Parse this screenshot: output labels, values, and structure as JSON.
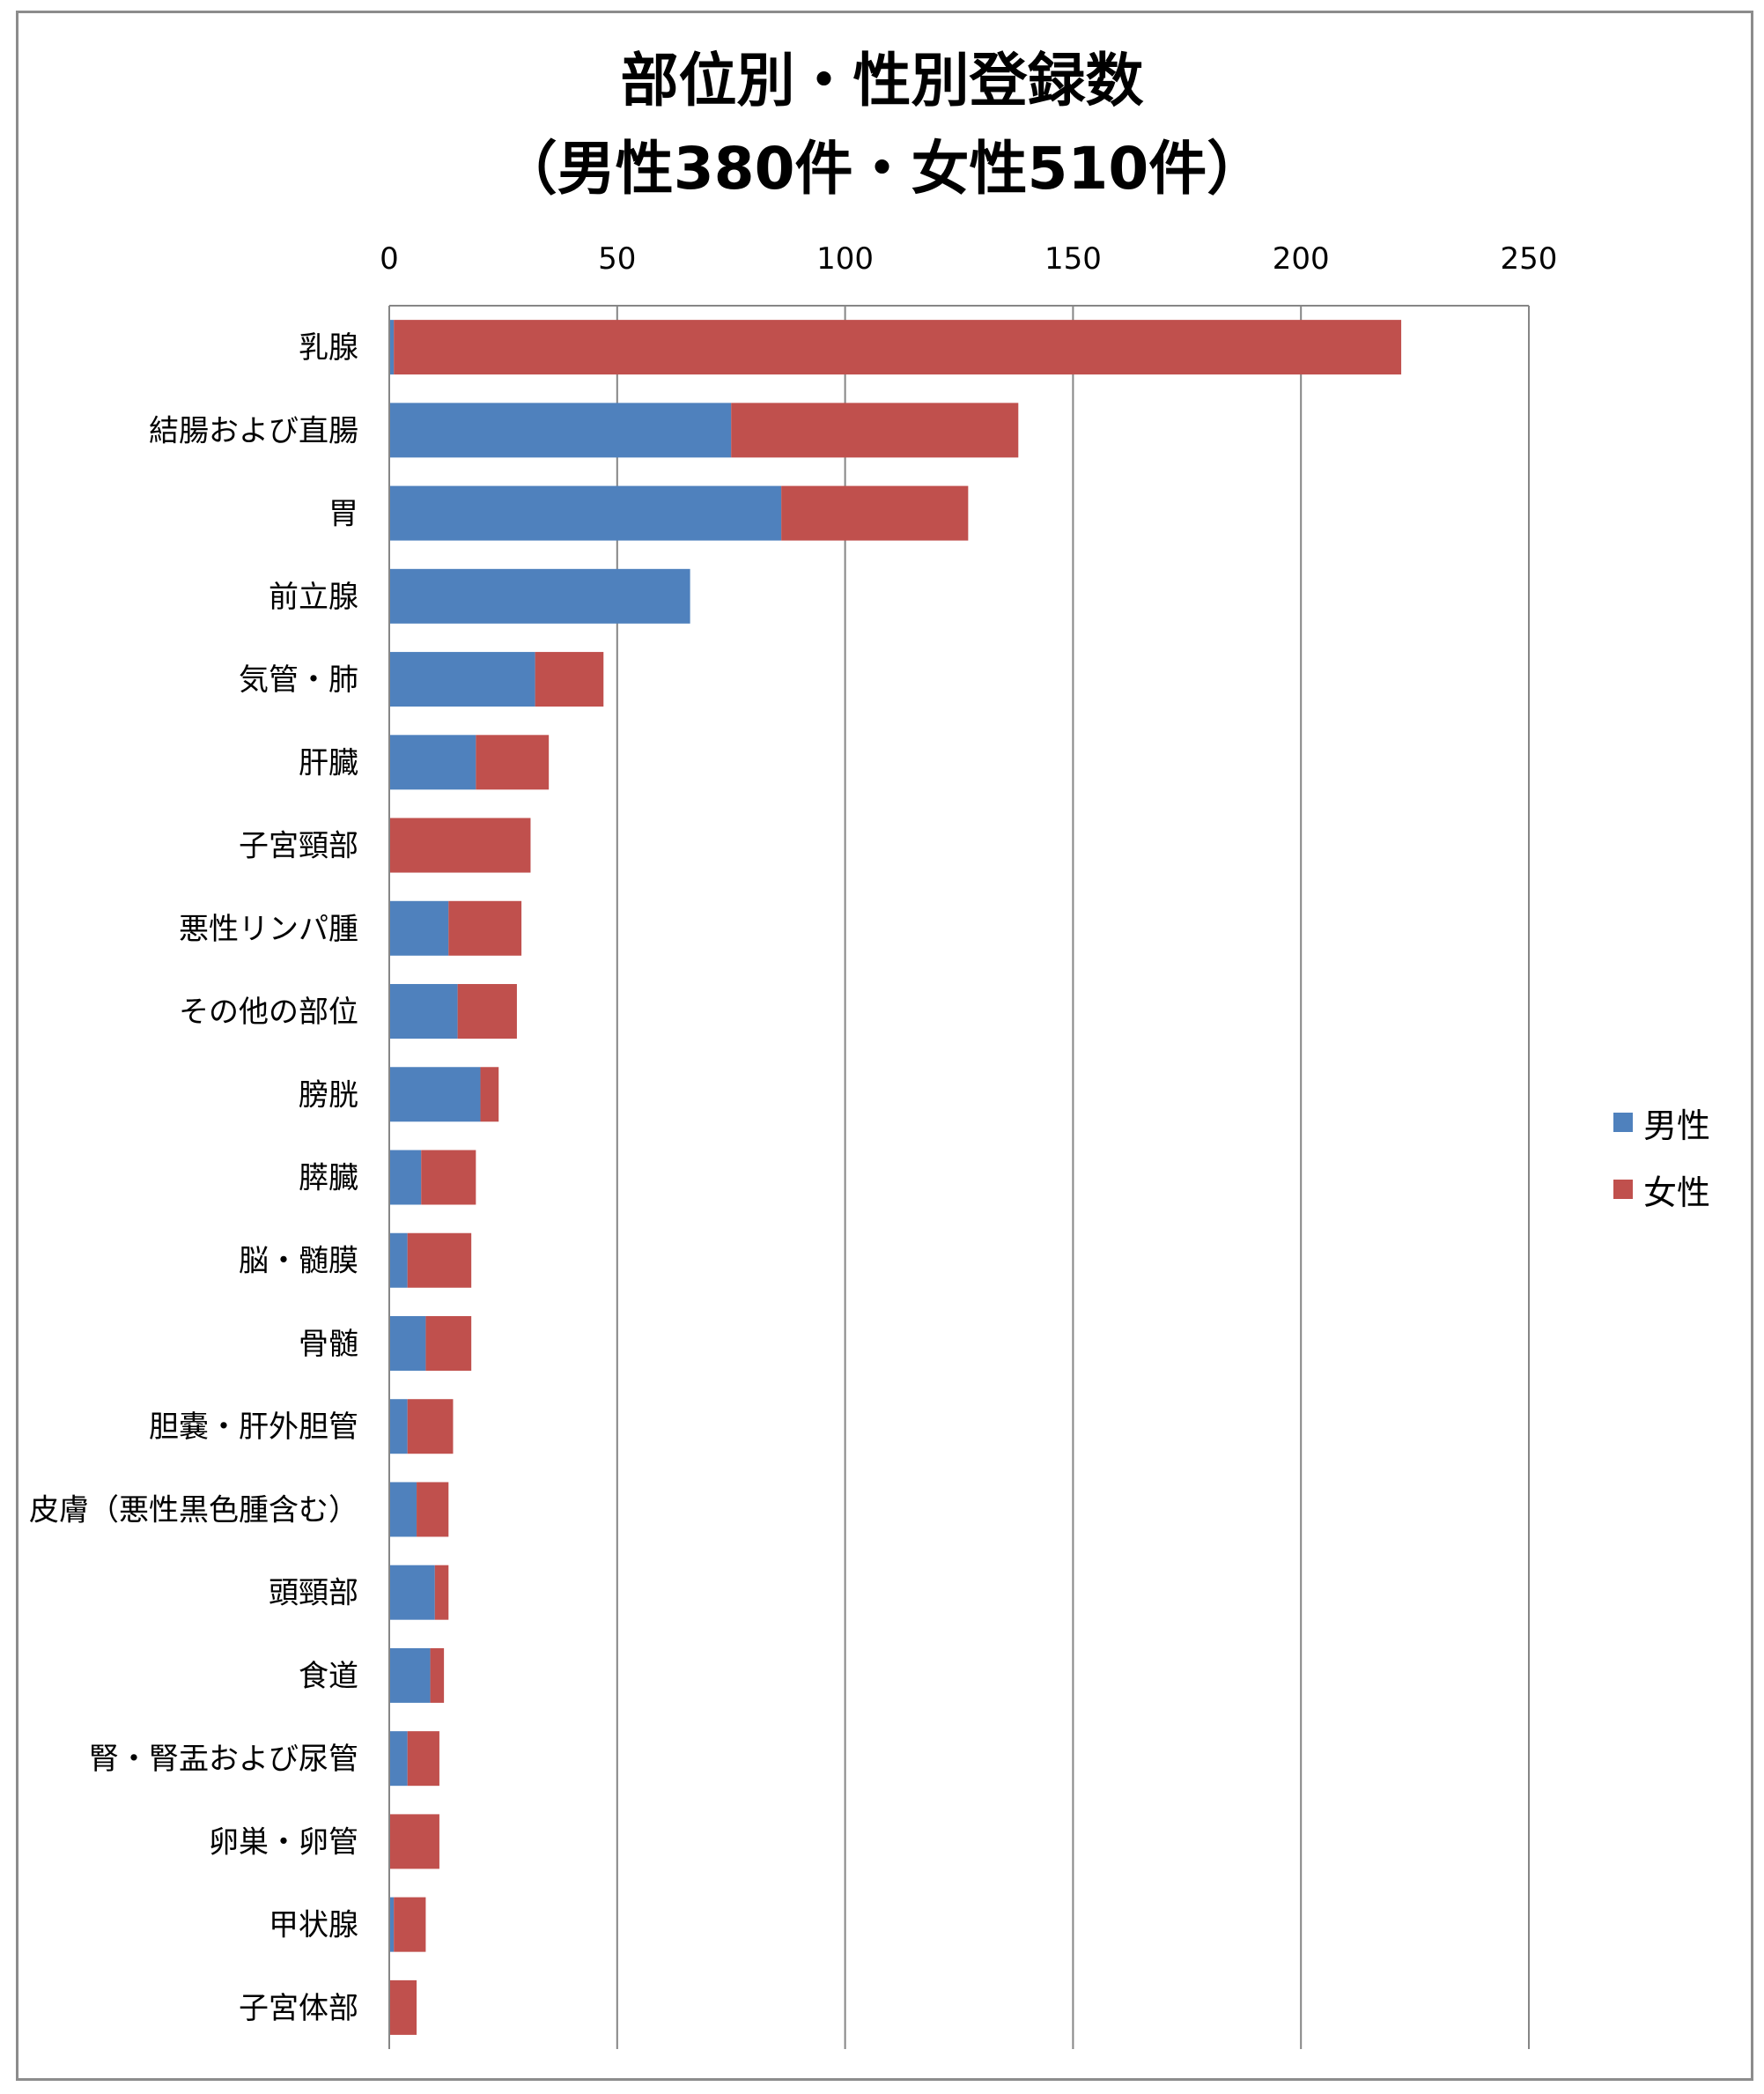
{
  "chart_data": {
    "type": "bar",
    "orientation": "horizontal",
    "stacked": true,
    "title_line1": "部位別・性別登録数",
    "title_line2": "（男性380件・女性510件）",
    "xlim": [
      0,
      250
    ],
    "xticks": [
      0,
      50,
      100,
      150,
      200,
      250
    ],
    "grid": true,
    "legend_position": "right",
    "categories": [
      "乳腺",
      "結腸および直腸",
      "胃",
      "前立腺",
      "気管・肺",
      "肝臓",
      "子宮頸部",
      "悪性リンパ腫",
      "その他の部位",
      "膀胱",
      "膵臓",
      "脳・髄膜",
      "骨髄",
      "胆嚢・肝外胆管",
      "皮膚（悪性黒色腫含む）",
      "頭頸部",
      "食道",
      "腎・腎盂および尿管",
      "卵巣・卵管",
      "甲状腺",
      "子宮体部"
    ],
    "series": [
      {
        "name": "男性",
        "color": "#4f81bd",
        "values": [
          1,
          75,
          86,
          66,
          32,
          19,
          0,
          13,
          15,
          20,
          7,
          4,
          8,
          4,
          6,
          10,
          9,
          4,
          0,
          1,
          0
        ]
      },
      {
        "name": "女性",
        "color": "#c0504d",
        "values": [
          221,
          63,
          41,
          0,
          15,
          16,
          31,
          16,
          13,
          4,
          12,
          14,
          10,
          10,
          7,
          3,
          3,
          7,
          11,
          7,
          6
        ]
      }
    ]
  }
}
